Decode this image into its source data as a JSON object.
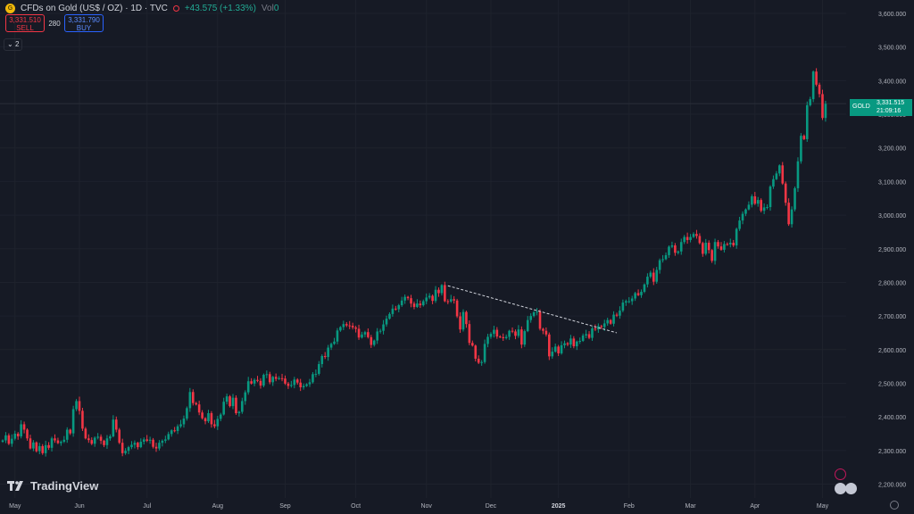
{
  "header": {
    "symbol_title": "CFDs on Gold (US$ / OZ) · 1D · TVC",
    "change_text": "+43.575 (+1.33%)",
    "volume_label": "Vol",
    "volume_value": "0"
  },
  "trade": {
    "sell_price": "3,331.510",
    "sell_label": "SELL",
    "spread": "280",
    "buy_price": "3,331.790",
    "buy_label": "BUY"
  },
  "indicators_collapse": {
    "count": "2"
  },
  "branding": {
    "logo_text": "TradingView"
  },
  "last_price_tag": {
    "symbol": "GOLD",
    "price": "3,331.515",
    "countdown": "21:09:16",
    "color": "#089981"
  },
  "colors": {
    "up": "#089981",
    "down": "#f23645",
    "background": "#161a25",
    "grid": "#1e222d",
    "axis_text": "#b2b5be"
  },
  "icons": [
    "gold-coin-icon",
    "trading-view-logo-icon",
    "settings-gear-icon",
    "event-flag-icon",
    "dividend-marker-icon"
  ],
  "chart_data": {
    "type": "candlestick",
    "title": "CFDs on Gold (US$ / OZ)",
    "timeframe": "1D",
    "ylim": [
      2180,
      3620
    ],
    "y_ticks": [
      2200,
      2300,
      2400,
      2500,
      2600,
      2700,
      2800,
      2900,
      3000,
      3100,
      3200,
      3300,
      3400,
      3500,
      3600
    ],
    "y_tick_labels": [
      "2,200.000",
      "2,300.000",
      "2,400.000",
      "2,500.000",
      "2,600.000",
      "2,700.000",
      "2,800.000",
      "2,900.000",
      "3,000.000",
      "3,100.000",
      "3,200.000",
      "3,300.000",
      "3,400.000",
      "3,500.000",
      "3,600.000"
    ],
    "x_labels": [
      "May",
      "Jun",
      "Jul",
      "Aug",
      "Sep",
      "Oct",
      "Nov",
      "Dec",
      "2025",
      "Feb",
      "Mar",
      "Apr",
      "May"
    ],
    "x_label_index": [
      4,
      25,
      47,
      70,
      92,
      115,
      138,
      159,
      181,
      204,
      224,
      245,
      267
    ],
    "last_price": 3331.515,
    "trendline": {
      "from": {
        "index": 145,
        "price": 2790
      },
      "to": {
        "index": 200,
        "price": 2650
      }
    },
    "series": [
      {
        "closes": [
          2330,
          2345,
          2320,
          2335,
          2350,
          2342,
          2378,
          2362,
          2336,
          2306,
          2324,
          2298,
          2313,
          2292,
          2316,
          2308,
          2336,
          2330,
          2322,
          2326,
          2332,
          2362,
          2351,
          2423,
          2447,
          2418,
          2365,
          2336,
          2331,
          2320,
          2338,
          2341,
          2329,
          2316,
          2336,
          2342,
          2392,
          2362,
          2323,
          2292,
          2299,
          2310,
          2317,
          2323,
          2310,
          2326,
          2333,
          2329,
          2332,
          2311,
          2306,
          2323,
          2329,
          2333,
          2349,
          2360,
          2358,
          2372,
          2378,
          2395,
          2426,
          2474,
          2441,
          2437,
          2413,
          2396,
          2387,
          2411,
          2378,
          2372,
          2394,
          2407,
          2445,
          2461,
          2432,
          2457,
          2411,
          2415,
          2447,
          2473,
          2506,
          2499,
          2510,
          2507,
          2493,
          2525,
          2527,
          2503,
          2519,
          2513,
          2515,
          2514,
          2499,
          2492,
          2495,
          2511,
          2502,
          2488,
          2492,
          2497,
          2503,
          2527,
          2528,
          2557,
          2581,
          2578,
          2606,
          2617,
          2624,
          2657,
          2667,
          2676,
          2672,
          2671,
          2666,
          2662,
          2636,
          2645,
          2652,
          2637,
          2614,
          2627,
          2654,
          2656,
          2675,
          2692,
          2706,
          2722,
          2720,
          2732,
          2746,
          2757,
          2753,
          2737,
          2727,
          2737,
          2732,
          2744,
          2755,
          2760,
          2745,
          2778,
          2768,
          2792,
          2744,
          2743,
          2750,
          2746,
          2699,
          2660,
          2712,
          2676,
          2620,
          2612,
          2573,
          2561,
          2563,
          2617,
          2638,
          2647,
          2659,
          2639,
          2637,
          2634,
          2638,
          2656,
          2654,
          2641,
          2660,
          2615,
          2655,
          2688,
          2700,
          2711,
          2713,
          2662,
          2656,
          2645,
          2580,
          2594,
          2609,
          2589,
          2613,
          2619,
          2615,
          2633,
          2610,
          2624,
          2626,
          2642,
          2646,
          2635,
          2663,
          2660,
          2670,
          2667,
          2678,
          2688,
          2677,
          2704,
          2701,
          2716,
          2740,
          2744,
          2744,
          2752,
          2768,
          2762,
          2772,
          2794,
          2817,
          2829,
          2802,
          2837,
          2866,
          2869,
          2881,
          2906,
          2910,
          2888,
          2892,
          2920,
          2935,
          2926,
          2935,
          2944,
          2938,
          2917,
          2885,
          2918,
          2896,
          2864,
          2920,
          2907,
          2897,
          2914,
          2913,
          2918,
          2910,
          2959,
          2984,
          3004,
          3017,
          3031,
          3056,
          3034,
          3045,
          3013,
          3023,
          3024,
          3085,
          3107,
          3124,
          3148,
          3094,
          3037,
          2973,
          3017,
          3080,
          3160,
          3236,
          3226,
          3327,
          3345,
          3427,
          3388,
          3360,
          3289,
          3331
        ]
      }
    ]
  }
}
